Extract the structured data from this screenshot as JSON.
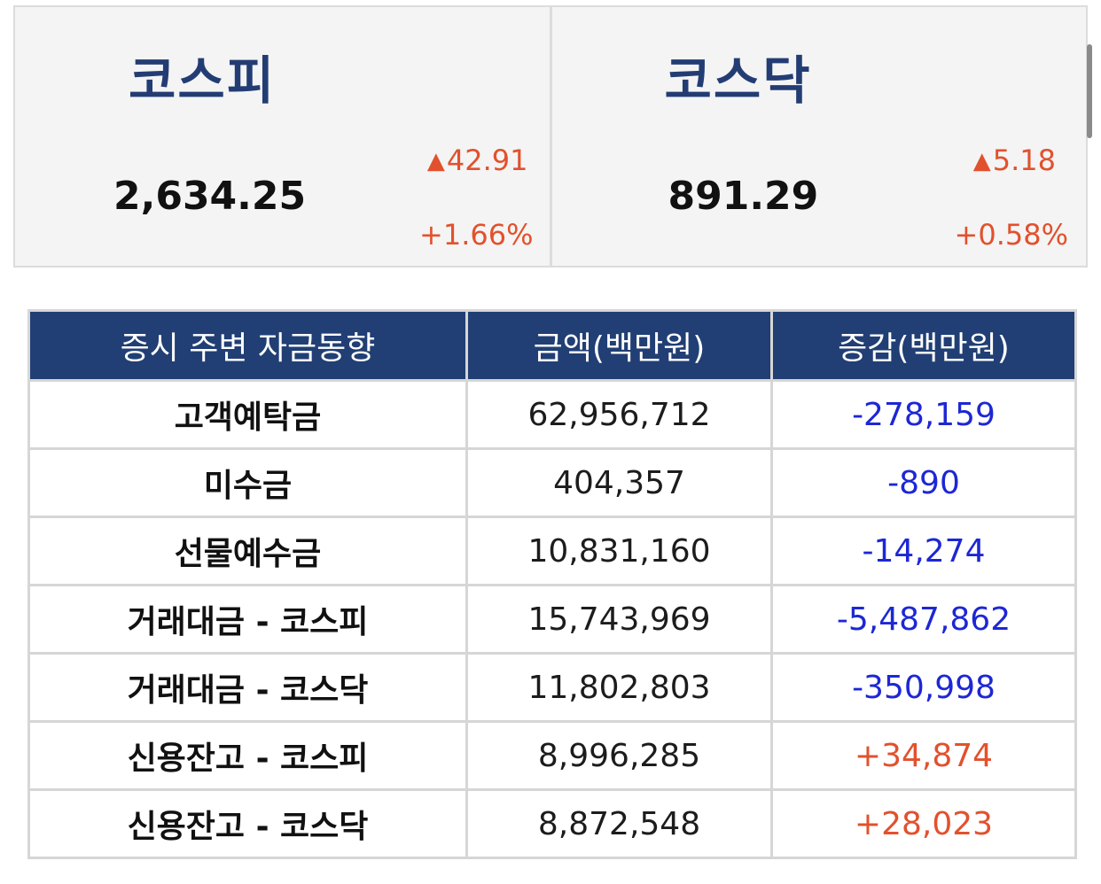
{
  "indices": [
    {
      "name": "코스피",
      "value": "2,634.25",
      "change": "42.91",
      "change_pct": "+1.66%",
      "direction": "up"
    },
    {
      "name": "코스닥",
      "value": "891.29",
      "change": "5.18",
      "change_pct": "+0.58%",
      "direction": "up"
    }
  ],
  "colors": {
    "index_name": "#233d74",
    "up": "#e2512d",
    "down": "#1d27d4",
    "table_header_bg": "#213f74"
  },
  "table": {
    "headers": [
      "증시 주변 자금동향",
      "금액(백만원)",
      "증감(백만원)"
    ],
    "rows": [
      {
        "label": "고객예탁금",
        "amount": "62,956,712",
        "change": "-278,159",
        "sign": "neg"
      },
      {
        "label": "미수금",
        "amount": "404,357",
        "change": "-890",
        "sign": "neg"
      },
      {
        "label": "선물예수금",
        "amount": "10,831,160",
        "change": "-14,274",
        "sign": "neg"
      },
      {
        "label": "거래대금 - 코스피",
        "amount": "15,743,969",
        "change": "-5,487,862",
        "sign": "neg"
      },
      {
        "label": "거래대금 - 코스닥",
        "amount": "11,802,803",
        "change": "-350,998",
        "sign": "neg"
      },
      {
        "label": "신용잔고 - 코스피",
        "amount": "8,996,285",
        "change": "+34,874",
        "sign": "pos"
      },
      {
        "label": "신용잔고 - 코스닥",
        "amount": "8,872,548",
        "change": "+28,023",
        "sign": "pos"
      }
    ]
  }
}
